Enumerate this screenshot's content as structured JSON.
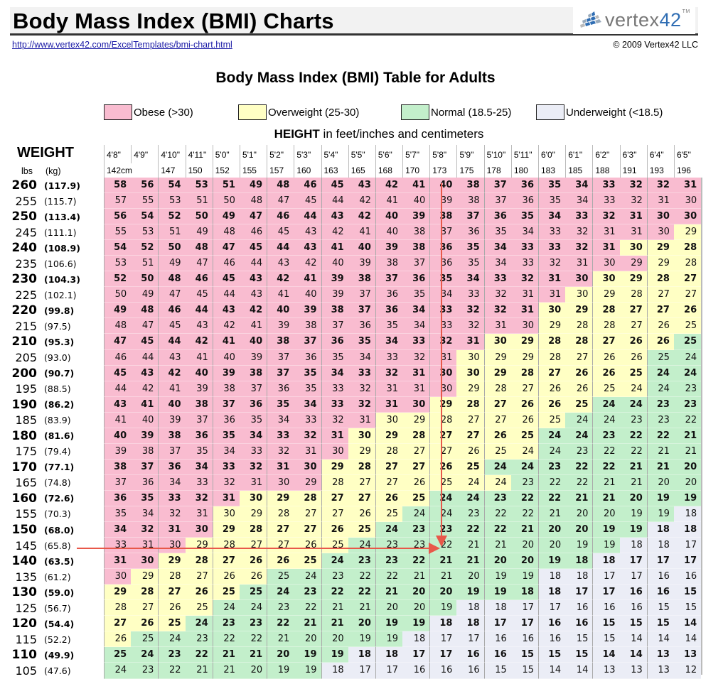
{
  "header": {
    "title": "Body Mass Index (BMI) Charts",
    "url": "http://www.vertex42.com/ExcelTemplates/bmi-chart.html",
    "copyright": "© 2009 Vertex42 LLC",
    "logo": {
      "text": "vertex",
      "num": "42",
      "tm": "TM"
    }
  },
  "table_title": "Body Mass Index (BMI) Table for Adults",
  "legend": [
    {
      "label": "Obese (>30)",
      "color": "#f9bcd0"
    },
    {
      "label": "Overweight (25-30)",
      "color": "#ffffc4"
    },
    {
      "label": "Normal (18.5-25)",
      "color": "#c3efcb"
    },
    {
      "label": "Underweight (<18.5)",
      "color": "#ebedf6"
    }
  ],
  "height_label": {
    "bold": "HEIGHT",
    "rest": " in feet/inches and centimeters"
  },
  "weight_header": "WEIGHT",
  "units": {
    "lbs": "lbs",
    "kg": "(kg)"
  },
  "heights_ft": [
    "4'8\"",
    "4'9\"",
    "4'10\"",
    "4'11\"",
    "5'0\"",
    "5'1\"",
    "5'2\"",
    "5'3\"",
    "5'4\"",
    "5'5\"",
    "5'6\"",
    "5'7\"",
    "5'8\"",
    "5'9\"",
    "5'10\"",
    "5'11\"",
    "6'0\"",
    "6'1\"",
    "6'2\"",
    "6'3\"",
    "6'4\"",
    "6'5\""
  ],
  "heights_cm": [
    "142cm",
    "",
    "147",
    "150",
    "152",
    "155",
    "157",
    "160",
    "163",
    "165",
    "168",
    "170",
    "173",
    "175",
    "178",
    "180",
    "183",
    "185",
    "188",
    "191",
    "193",
    "196"
  ],
  "chart_data": {
    "type": "table",
    "title": "Body Mass Index (BMI) Table for Adults",
    "xlabel": "HEIGHT in feet/inches and centimeters",
    "ylabel": "WEIGHT lbs (kg)",
    "columns": [
      "4'8\"",
      "4'9\"",
      "4'10\"",
      "4'11\"",
      "5'0\"",
      "5'1\"",
      "5'2\"",
      "5'3\"",
      "5'4\"",
      "5'5\"",
      "5'6\"",
      "5'7\"",
      "5'8\"",
      "5'9\"",
      "5'10\"",
      "5'11\"",
      "6'0\"",
      "6'1\"",
      "6'2\"",
      "6'3\"",
      "6'4\"",
      "6'5\""
    ],
    "legend": [
      "Obese (>30)",
      "Overweight (25-30)",
      "Normal (18.5-25)",
      "Underweight (<18.5)"
    ],
    "annotation": "Red arrow example: 145 lbs at 5'8\" gives BMI 22",
    "rows": [
      {
        "lbs": "260",
        "kg": "(117.9)",
        "bold": true,
        "values": [
          58,
          56,
          54,
          53,
          51,
          49,
          48,
          46,
          45,
          43,
          42,
          41,
          40,
          38,
          37,
          36,
          35,
          34,
          33,
          32,
          32,
          31
        ],
        "cats": "oooooooooooooooooooooo"
      },
      {
        "lbs": "255",
        "kg": "(115.7)",
        "bold": false,
        "values": [
          57,
          55,
          53,
          51,
          50,
          48,
          47,
          45,
          44,
          42,
          41,
          40,
          39,
          38,
          37,
          36,
          35,
          34,
          33,
          32,
          31,
          30
        ],
        "cats": "oooooooooooooooooooooo"
      },
      {
        "lbs": "250",
        "kg": "(113.4)",
        "bold": true,
        "values": [
          56,
          54,
          52,
          50,
          49,
          47,
          46,
          44,
          43,
          42,
          40,
          39,
          38,
          37,
          36,
          35,
          34,
          33,
          32,
          31,
          30,
          30
        ],
        "cats": "oooooooooooooooooooooow"
      },
      {
        "lbs": "245",
        "kg": "(111.1)",
        "bold": false,
        "values": [
          55,
          53,
          51,
          49,
          48,
          46,
          45,
          43,
          42,
          41,
          40,
          38,
          37,
          36,
          35,
          34,
          33,
          32,
          31,
          31,
          30,
          29
        ],
        "cats": "oooooooooooooooooooooww"
      },
      {
        "lbs": "240",
        "kg": "(108.9)",
        "bold": true,
        "values": [
          54,
          52,
          50,
          48,
          47,
          45,
          44,
          43,
          41,
          40,
          39,
          38,
          36,
          35,
          34,
          33,
          33,
          32,
          31,
          30,
          29,
          28
        ],
        "cats": "ooooooooooooooooooowww"
      },
      {
        "lbs": "235",
        "kg": "(106.6)",
        "bold": false,
        "values": [
          53,
          51,
          49,
          47,
          46,
          44,
          43,
          42,
          40,
          39,
          38,
          37,
          36,
          35,
          34,
          33,
          32,
          31,
          30,
          29,
          29,
          28
        ],
        "cats": "oooooooooooooooooooowww"
      },
      {
        "lbs": "230",
        "kg": "(104.3)",
        "bold": true,
        "values": [
          52,
          50,
          48,
          46,
          45,
          43,
          42,
          41,
          39,
          38,
          37,
          36,
          35,
          34,
          33,
          32,
          31,
          30,
          30,
          29,
          28,
          27
        ],
        "cats": "oooooooooooooooooowwww"
      },
      {
        "lbs": "225",
        "kg": "(102.1)",
        "bold": false,
        "values": [
          50,
          49,
          47,
          45,
          44,
          43,
          41,
          40,
          39,
          37,
          36,
          35,
          34,
          33,
          32,
          31,
          31,
          30,
          29,
          28,
          27,
          27
        ],
        "cats": "ooooooooooooooooowwwww"
      },
      {
        "lbs": "220",
        "kg": "(99.8)",
        "bold": true,
        "values": [
          49,
          48,
          46,
          44,
          43,
          42,
          40,
          39,
          38,
          37,
          36,
          34,
          33,
          32,
          32,
          31,
          30,
          29,
          28,
          27,
          27,
          26
        ],
        "cats": "oooooooooooooooowwwwww"
      },
      {
        "lbs": "215",
        "kg": "(97.5)",
        "bold": false,
        "values": [
          48,
          47,
          45,
          43,
          42,
          41,
          39,
          38,
          37,
          36,
          35,
          34,
          33,
          32,
          31,
          30,
          29,
          28,
          28,
          27,
          26,
          25
        ],
        "cats": "oooooooooooooooowwwwww"
      },
      {
        "lbs": "210",
        "kg": "(95.3)",
        "bold": true,
        "values": [
          47,
          45,
          44,
          42,
          41,
          40,
          38,
          37,
          36,
          35,
          34,
          33,
          32,
          31,
          30,
          29,
          28,
          28,
          27,
          26,
          26,
          25
        ],
        "cats": "oooooooooooooowwwwwwwn"
      },
      {
        "lbs": "205",
        "kg": "(93.0)",
        "bold": false,
        "values": [
          46,
          44,
          43,
          41,
          40,
          39,
          37,
          36,
          35,
          34,
          33,
          32,
          31,
          30,
          29,
          29,
          28,
          27,
          26,
          26,
          25,
          24
        ],
        "cats": "ooooooooooooowwwwwwwnn"
      },
      {
        "lbs": "200",
        "kg": "(90.7)",
        "bold": true,
        "values": [
          45,
          43,
          42,
          40,
          39,
          38,
          37,
          35,
          34,
          33,
          32,
          31,
          30,
          30,
          29,
          28,
          27,
          26,
          26,
          25,
          24,
          24
        ],
        "cats": "ooooooooooooowwwwwwwnnn"
      },
      {
        "lbs": "195",
        "kg": "(88.5)",
        "bold": false,
        "values": [
          44,
          42,
          41,
          39,
          38,
          37,
          36,
          35,
          33,
          32,
          31,
          31,
          30,
          29,
          28,
          27,
          26,
          26,
          25,
          24,
          24,
          23
        ],
        "cats": "ooooooooooooowwwwwwwnnn"
      },
      {
        "lbs": "190",
        "kg": "(86.2)",
        "bold": true,
        "values": [
          43,
          41,
          40,
          38,
          37,
          36,
          35,
          34,
          33,
          32,
          31,
          30,
          29,
          28,
          27,
          26,
          26,
          25,
          24,
          24,
          23,
          23
        ],
        "cats": "oooooooooooowwwwwwnnnnn"
      },
      {
        "lbs": "185",
        "kg": "(83.9)",
        "bold": false,
        "values": [
          41,
          40,
          39,
          37,
          36,
          35,
          34,
          33,
          32,
          31,
          30,
          29,
          28,
          27,
          27,
          26,
          25,
          24,
          24,
          23,
          23,
          22
        ],
        "cats": "oooooooooowwwwwwwnnnnnn"
      },
      {
        "lbs": "180",
        "kg": "(81.6)",
        "bold": true,
        "values": [
          40,
          39,
          38,
          36,
          35,
          34,
          33,
          32,
          31,
          30,
          29,
          28,
          27,
          27,
          26,
          25,
          24,
          24,
          23,
          22,
          22,
          21
        ],
        "cats": "ooooooooowwwwwwwnnnnnnn"
      },
      {
        "lbs": "175",
        "kg": "(79.4)",
        "bold": false,
        "values": [
          39,
          38,
          37,
          35,
          34,
          33,
          32,
          31,
          30,
          29,
          28,
          27,
          27,
          26,
          25,
          24,
          24,
          23,
          22,
          22,
          21,
          21
        ],
        "cats": "ooooooooowwwwwwwnnnnnnn"
      },
      {
        "lbs": "170",
        "kg": "(77.1)",
        "bold": true,
        "values": [
          38,
          37,
          36,
          34,
          33,
          32,
          31,
          30,
          29,
          28,
          27,
          27,
          26,
          25,
          24,
          24,
          23,
          22,
          22,
          21,
          21,
          20
        ],
        "cats": "oooooooowwwwwwnnnnnnnnn"
      },
      {
        "lbs": "165",
        "kg": "(74.8)",
        "bold": false,
        "values": [
          37,
          36,
          34,
          33,
          32,
          31,
          30,
          29,
          28,
          27,
          27,
          26,
          25,
          24,
          24,
          23,
          22,
          22,
          21,
          21,
          20,
          20
        ],
        "cats": "oooooooowwwwwwwnnnnnnnnn"
      },
      {
        "lbs": "160",
        "kg": "(72.6)",
        "bold": true,
        "values": [
          36,
          35,
          33,
          32,
          31,
          30,
          29,
          28,
          27,
          27,
          26,
          25,
          24,
          24,
          23,
          22,
          22,
          21,
          21,
          20,
          19,
          19
        ],
        "cats": "ooooowwwwwwwnnnnnnnnnnn"
      },
      {
        "lbs": "155",
        "kg": "(70.3)",
        "bold": false,
        "values": [
          35,
          34,
          32,
          31,
          30,
          29,
          28,
          27,
          27,
          26,
          25,
          24,
          24,
          23,
          22,
          22,
          21,
          20,
          20,
          19,
          19,
          18
        ],
        "cats": "oooowwwwwwwnnnnnnnnnnu"
      },
      {
        "lbs": "150",
        "kg": "(68.0)",
        "bold": true,
        "values": [
          34,
          32,
          31,
          30,
          29,
          28,
          27,
          27,
          26,
          25,
          24,
          23,
          23,
          22,
          22,
          21,
          20,
          20,
          19,
          19,
          18,
          18
        ],
        "cats": "oooowwwwwwnnnnnnnnnnuu"
      },
      {
        "lbs": "145",
        "kg": "(65.8)",
        "bold": false,
        "values": [
          33,
          31,
          30,
          29,
          28,
          27,
          27,
          26,
          25,
          24,
          23,
          23,
          22,
          21,
          21,
          20,
          20,
          19,
          19,
          18,
          18,
          17
        ],
        "cats": "ooowwwwwwnnnnnnnnnnuuu"
      },
      {
        "lbs": "140",
        "kg": "(63.5)",
        "bold": true,
        "values": [
          31,
          30,
          29,
          28,
          27,
          26,
          26,
          25,
          24,
          23,
          23,
          22,
          21,
          21,
          20,
          20,
          19,
          18,
          18,
          17,
          17,
          17
        ],
        "cats": "oowwwwwwnnnnnnnnnnuuuuu"
      },
      {
        "lbs": "135",
        "kg": "(61.2)",
        "bold": false,
        "values": [
          30,
          29,
          28,
          27,
          26,
          26,
          25,
          24,
          23,
          22,
          22,
          21,
          21,
          20,
          19,
          19,
          18,
          18,
          17,
          17,
          16,
          16
        ],
        "cats": "owwwwwnnnnnnnnnnuuuuuu"
      },
      {
        "lbs": "130",
        "kg": "(59.0)",
        "bold": true,
        "values": [
          29,
          28,
          27,
          26,
          25,
          25,
          24,
          23,
          22,
          22,
          21,
          20,
          20,
          19,
          19,
          18,
          18,
          17,
          17,
          16,
          16,
          15
        ],
        "cats": "wwwwwnnnnnnnnnnnuuuuuu"
      },
      {
        "lbs": "125",
        "kg": "(56.7)",
        "bold": false,
        "values": [
          28,
          27,
          26,
          25,
          24,
          24,
          23,
          22,
          21,
          21,
          20,
          20,
          19,
          18,
          18,
          17,
          17,
          16,
          16,
          16,
          15,
          15
        ],
        "cats": "wwwwnnnnnnnnnuuuuuuuuu"
      },
      {
        "lbs": "120",
        "kg": "(54.4)",
        "bold": true,
        "values": [
          27,
          26,
          25,
          24,
          23,
          23,
          22,
          21,
          21,
          20,
          19,
          19,
          18,
          18,
          17,
          17,
          16,
          16,
          15,
          15,
          15,
          14
        ],
        "cats": "wwwnnnnnnnnnuuuuuuuuuu"
      },
      {
        "lbs": "115",
        "kg": "(52.2)",
        "bold": false,
        "values": [
          26,
          25,
          24,
          23,
          22,
          22,
          21,
          20,
          20,
          19,
          19,
          18,
          17,
          17,
          16,
          16,
          16,
          15,
          15,
          14,
          14,
          14
        ],
        "cats": "wnnnnnnnnnnuuuuuuuuuuu"
      },
      {
        "lbs": "110",
        "kg": "(49.9)",
        "bold": true,
        "values": [
          25,
          24,
          23,
          22,
          21,
          21,
          20,
          19,
          19,
          18,
          18,
          17,
          17,
          16,
          16,
          15,
          15,
          15,
          14,
          14,
          13,
          13
        ],
        "cats": "nnnnnnnnnuuuuuuuuuuuuu"
      },
      {
        "lbs": "105",
        "kg": "(47.6)",
        "bold": false,
        "values": [
          24,
          23,
          22,
          21,
          21,
          20,
          19,
          19,
          18,
          17,
          17,
          16,
          16,
          16,
          15,
          15,
          14,
          14,
          13,
          13,
          13,
          12
        ],
        "cats": "nnnnnnnnuuuuuuuuuuuuuu"
      }
    ]
  }
}
